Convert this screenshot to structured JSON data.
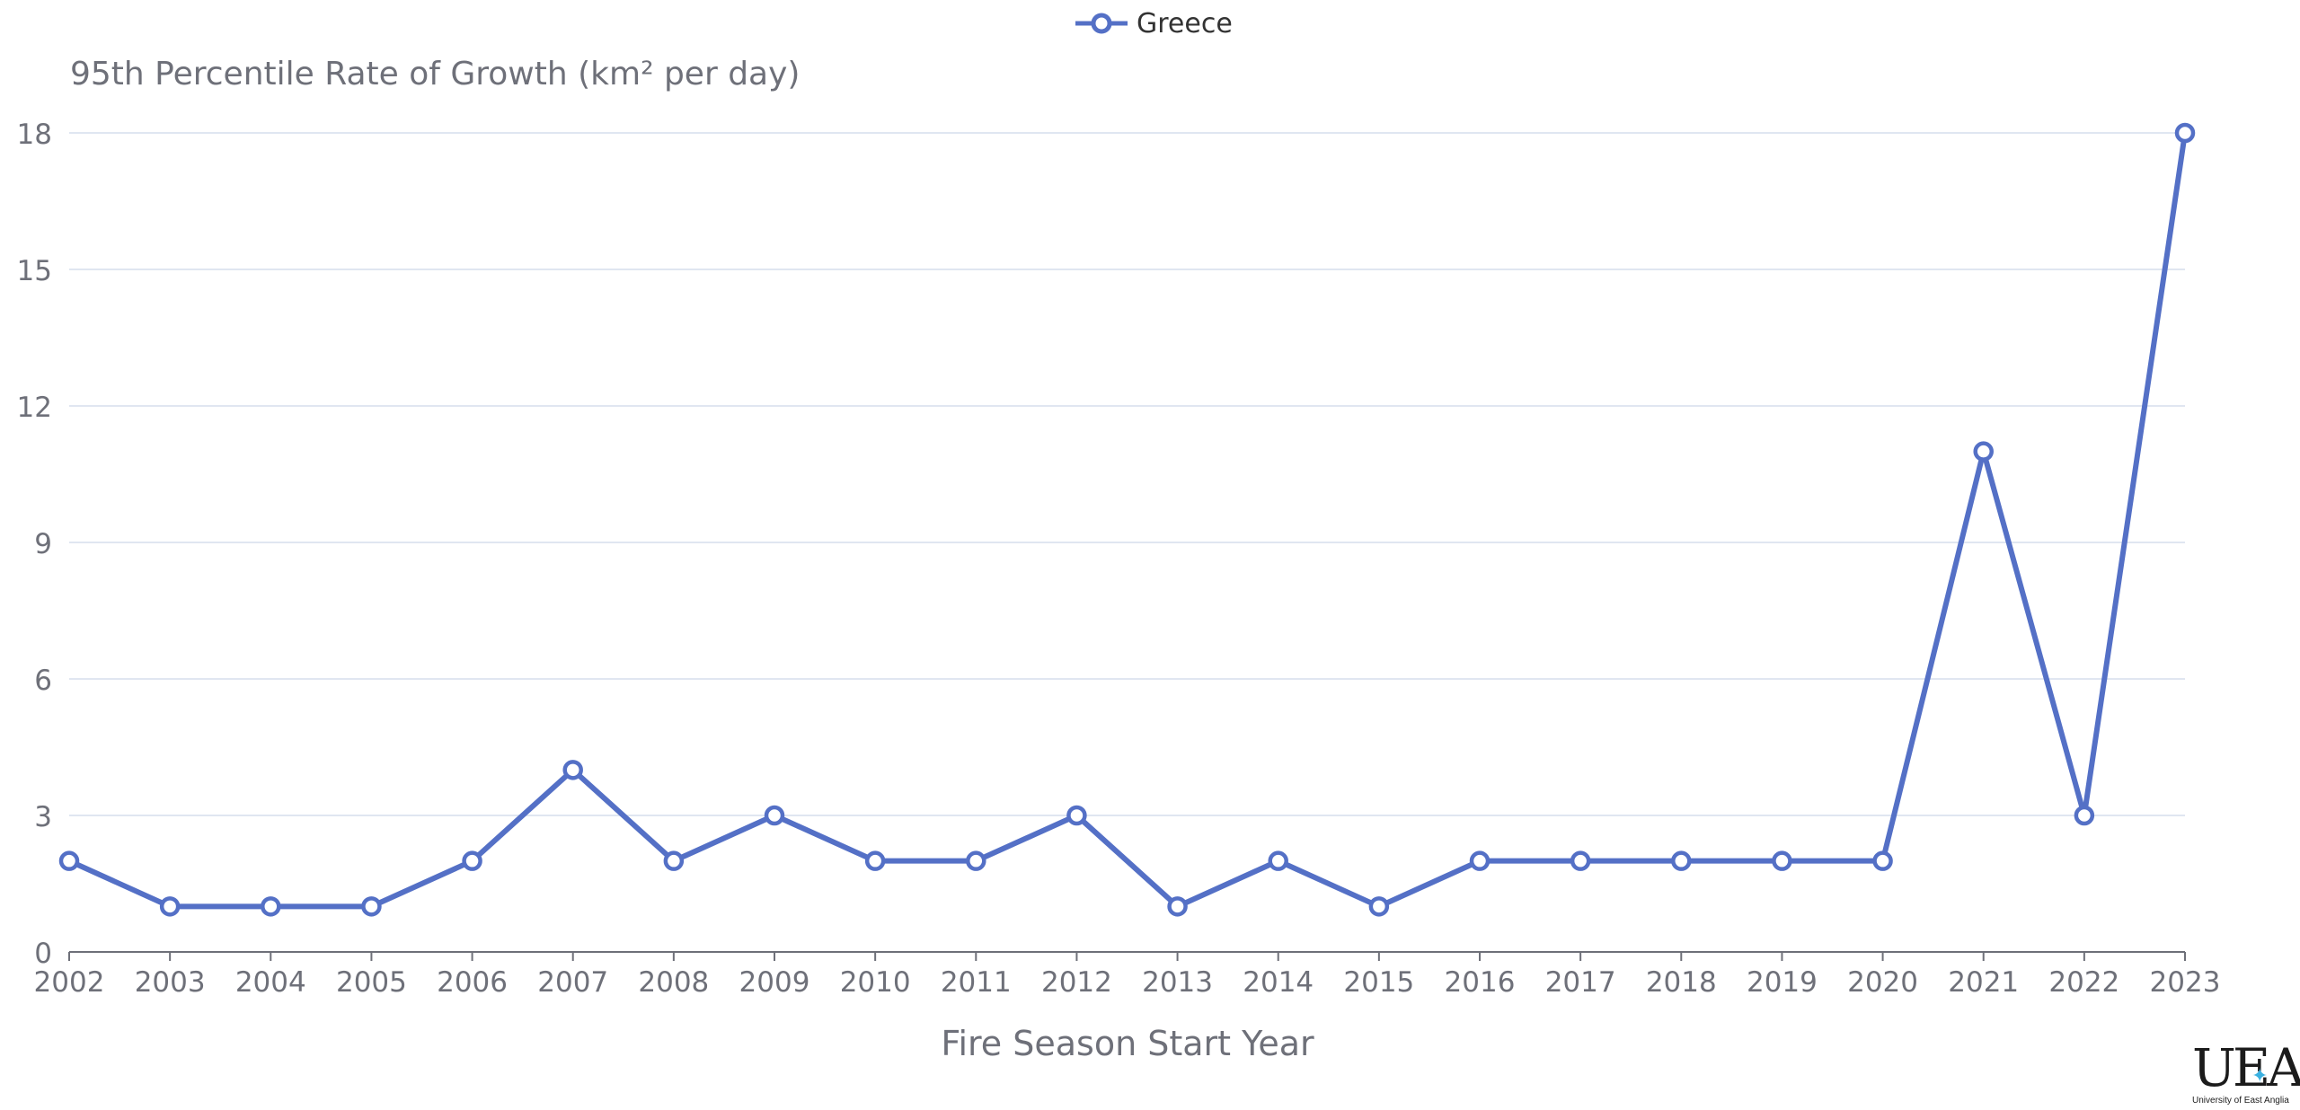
{
  "legend": {
    "series_name": "Greece"
  },
  "chart_data": {
    "type": "line",
    "title": "",
    "ylabel": "95th Percentile Rate of Growth (km² per day)",
    "xlabel": "Fire Season Start Year",
    "ylim": [
      0,
      18
    ],
    "yticks": [
      0,
      3,
      6,
      9,
      12,
      15,
      18
    ],
    "categories": [
      "2002",
      "2003",
      "2004",
      "2005",
      "2006",
      "2007",
      "2008",
      "2009",
      "2010",
      "2011",
      "2012",
      "2013",
      "2014",
      "2015",
      "2016",
      "2017",
      "2018",
      "2019",
      "2020",
      "2021",
      "2022",
      "2023"
    ],
    "series": [
      {
        "name": "Greece",
        "values": [
          2,
          1,
          1,
          1,
          2,
          4,
          2,
          3,
          2,
          2,
          3,
          1,
          2,
          1,
          2,
          2,
          2,
          2,
          2,
          11,
          3,
          18
        ]
      }
    ],
    "grid": true,
    "legend_position": "top-center",
    "colors": {
      "series": "#5470c6",
      "grid": "#e0e6f1",
      "axis_text": "#6e7079",
      "axis_line": "#6e7079"
    }
  },
  "logo": {
    "mark": "UEA",
    "text": "University of East Anglia"
  }
}
